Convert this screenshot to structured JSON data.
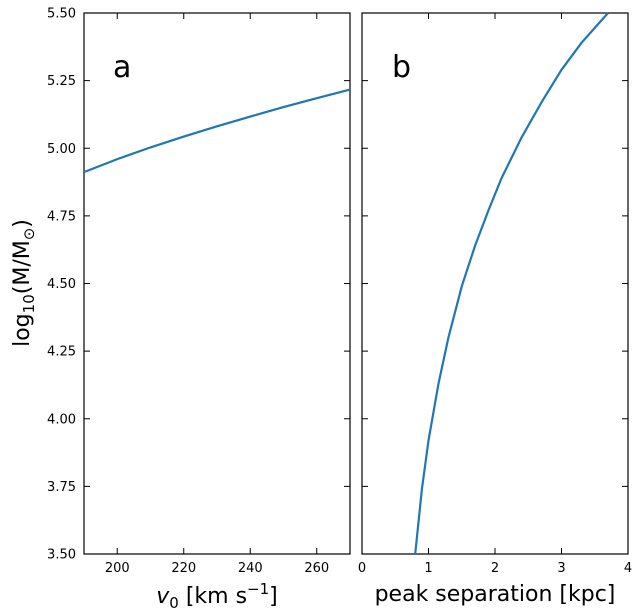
{
  "chart_data": [
    {
      "type": "line",
      "panel_label": "a",
      "xlabel": "v_0 [km s^-1]",
      "ylabel": "log10(M/M_sun)",
      "xlim": [
        190,
        270
      ],
      "ylim": [
        3.5,
        5.5
      ],
      "x_ticks": [
        200,
        220,
        240,
        260
      ],
      "x_tick_labels": [
        "200",
        "220",
        "240",
        "260"
      ],
      "y_ticks": [
        3.5,
        3.75,
        4.0,
        4.25,
        4.5,
        4.75,
        5.0,
        5.25,
        5.5
      ],
      "y_tick_labels": [
        "3.50",
        "3.75",
        "4.00",
        "4.25",
        "4.50",
        "4.75",
        "5.00",
        "5.25",
        "5.50"
      ],
      "grid": false,
      "series": [
        {
          "color": "#1f77b4",
          "x": [
            190,
            200,
            210,
            220,
            230,
            240,
            250,
            260,
            270
          ],
          "y": [
            4.912,
            4.96,
            5.003,
            5.043,
            5.081,
            5.117,
            5.152,
            5.185,
            5.217
          ]
        }
      ]
    },
    {
      "type": "line",
      "panel_label": "b",
      "xlabel": "peak separation [kpc]",
      "xlim": [
        0,
        4
      ],
      "ylim": [
        3.5,
        5.5
      ],
      "x_ticks": [
        0,
        1,
        2,
        3,
        4
      ],
      "x_tick_labels": [
        "0",
        "1",
        "2",
        "3",
        "4"
      ],
      "y_ticks": [
        3.5,
        3.75,
        4.0,
        4.25,
        4.5,
        4.75,
        5.0,
        5.25,
        5.5
      ],
      "grid": false,
      "series": [
        {
          "color": "#1f77b4",
          "x": [
            0.8,
            0.9,
            1.0,
            1.15,
            1.3,
            1.5,
            1.7,
            1.9,
            2.1,
            2.4,
            2.7,
            3.0,
            3.3,
            3.7
          ],
          "y": [
            3.5,
            3.74,
            3.92,
            4.13,
            4.3,
            4.49,
            4.64,
            4.77,
            4.89,
            5.04,
            5.17,
            5.29,
            5.39,
            5.5
          ]
        }
      ]
    }
  ]
}
